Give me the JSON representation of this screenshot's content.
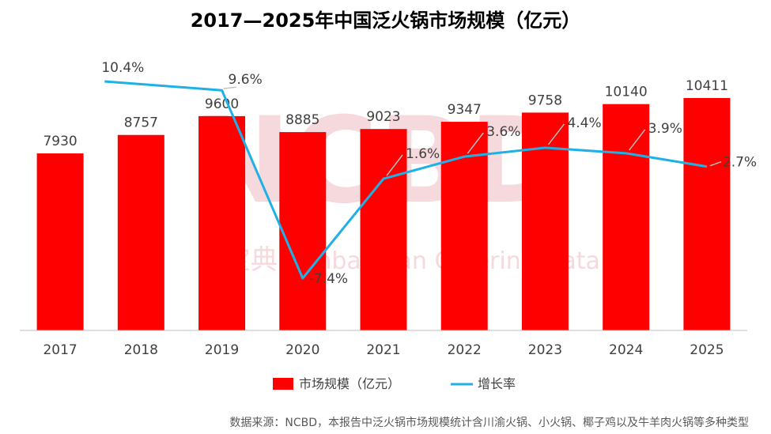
{
  "chart_data": {
    "type": "bar+line",
    "title": "2017—2025年中国泛火锅市场规模（亿元）",
    "categories": [
      "2017",
      "2018",
      "2019",
      "2020",
      "2021",
      "2022",
      "2023",
      "2024",
      "2025"
    ],
    "series": [
      {
        "name": "市场规模（亿元）",
        "type": "bar",
        "color": "#ff0000",
        "values": [
          7930,
          8757,
          9600,
          8885,
          9023,
          9347,
          9758,
          10140,
          10411
        ],
        "labels": [
          "7930",
          "8757",
          "9600",
          "8885",
          "9023",
          "9347",
          "9758",
          "10140",
          "10411"
        ]
      },
      {
        "name": "增长率",
        "type": "line",
        "color": "#1fb1e6",
        "values": [
          null,
          10.4,
          9.6,
          -7.4,
          1.6,
          3.6,
          4.4,
          3.9,
          2.7
        ],
        "labels": [
          "",
          "10.4%",
          "9.6%",
          "-7.4%",
          "1.6%",
          "3.6%",
          "4.4%",
          "3.9%",
          "2.7%"
        ]
      }
    ],
    "y_left": [
      0,
      10411
    ],
    "y_right": [
      -9.4,
      10.4
    ],
    "legend_position": "bottom",
    "grid": false
  },
  "source": "数据来源：NCBD，本报告中泛火锅市场规模统计含川渝火锅、小火锅、椰子鸡以及牛羊肉火锅等多种类型",
  "watermark": {
    "logo": "NCBD",
    "cn": "餐宝典",
    "en": "Canbaodian Catering Data"
  }
}
